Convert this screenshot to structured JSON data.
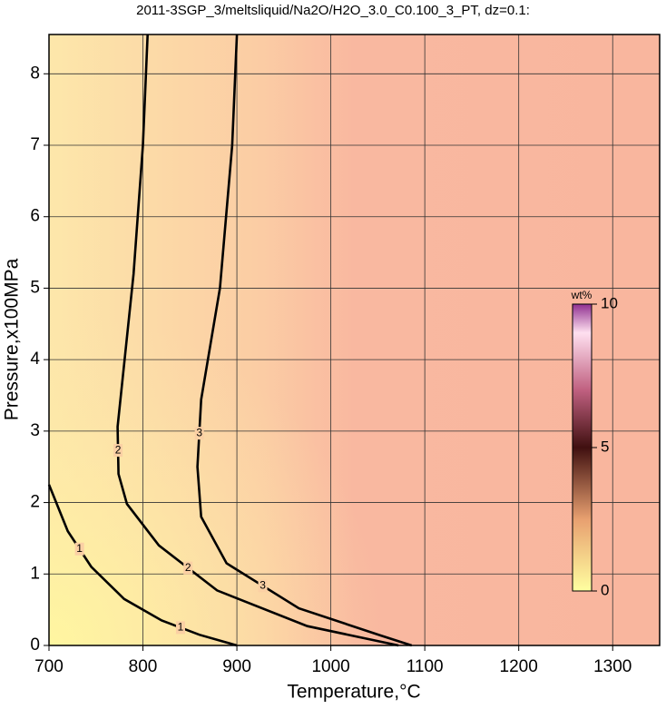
{
  "chart_data": {
    "type": "contour",
    "title": "2011-3SGP_3/meltsliquid/Na2O/H2O_3.0_C0.100_3_PT, dz=0.1:",
    "xlabel": "Temperature,°C",
    "ylabel": "Pressure,x100MPa",
    "xlim": [
      700,
      1350
    ],
    "ylim": [
      0,
      8.55
    ],
    "xticks": [
      700,
      800,
      900,
      1000,
      1100,
      1200,
      1300
    ],
    "yticks": [
      0,
      1,
      2,
      3,
      4,
      5,
      6,
      7,
      8
    ],
    "grid": true,
    "contours": [
      {
        "level": 1,
        "x": [
          700,
          720,
          745,
          780,
          820,
          860,
          900
        ],
        "y": [
          2.25,
          1.6,
          1.1,
          0.65,
          0.35,
          0.15,
          0
        ]
      },
      {
        "level": 2,
        "x": [
          805,
          800,
          790,
          773,
          774,
          783,
          817,
          879,
          975,
          1072
        ],
        "y": [
          8.55,
          7,
          5.2,
          3.06,
          2.4,
          1.98,
          1.4,
          0.77,
          0.27,
          0
        ]
      },
      {
        "level": 3,
        "x": [
          900,
          895,
          882,
          862,
          858,
          862,
          889,
          966,
          1053,
          1086
        ],
        "y": [
          8.55,
          7,
          5.0,
          3.44,
          2.5,
          1.8,
          1.15,
          0.52,
          0.14,
          0
        ]
      }
    ],
    "colorbar": {
      "label": "wt%",
      "lim": [
        0,
        10
      ],
      "ticks": [
        0,
        5,
        10
      ]
    }
  }
}
